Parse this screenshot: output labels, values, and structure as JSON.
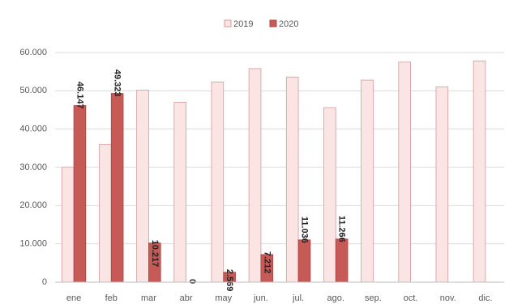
{
  "chart_data": {
    "type": "bar",
    "categories": [
      "ene",
      "feb",
      "mar",
      "abr",
      "may",
      "jun.",
      "jul.",
      "ago.",
      "sep.",
      "oct.",
      "nov.",
      "dic."
    ],
    "series": [
      {
        "name": "2019",
        "color": "#fbe4e4",
        "stroke": "#d49a9a",
        "values": [
          30000,
          36000,
          50200,
          47000,
          52300,
          55800,
          53600,
          45600,
          52800,
          57500,
          51000,
          57800
        ]
      },
      {
        "name": "2020",
        "color": "#c65a56",
        "stroke": "#a94442",
        "values": [
          46147,
          49323,
          10217,
          0,
          2569,
          7212,
          11036,
          11266,
          null,
          null,
          null,
          null
        ],
        "value_labels": [
          "46.147",
          "49.323",
          "10.217",
          "0",
          "2.569",
          "7.212",
          "11.036",
          "11.266",
          null,
          null,
          null,
          null
        ]
      }
    ],
    "ylim": [
      0,
      60000
    ],
    "yticks": [
      {
        "value": 0,
        "label": "0"
      },
      {
        "value": 10000,
        "label": "10.000"
      },
      {
        "value": 20000,
        "label": "20.000"
      },
      {
        "value": 30000,
        "label": "30.000"
      },
      {
        "value": 40000,
        "label": "40.000"
      },
      {
        "value": 50000,
        "label": "50.000"
      },
      {
        "value": 60000,
        "label": "60.000"
      }
    ],
    "grid": true,
    "legend": "top"
  }
}
